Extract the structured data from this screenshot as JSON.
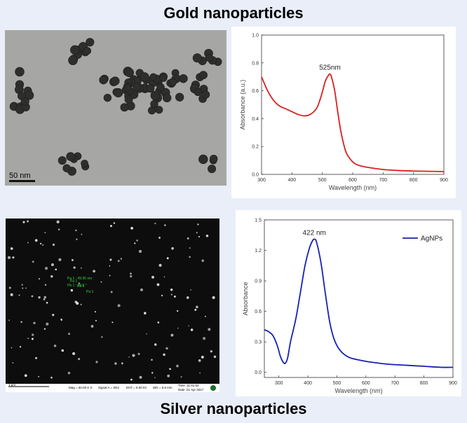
{
  "titles": {
    "gold": "Gold nanoparticles",
    "silver": "Silver nanoparticles"
  },
  "tem": {
    "scale_bar": "50 nm"
  },
  "sem": {
    "scale_bar": "1 μm",
    "info": {
      "mag": "Mag = 50.00 K X",
      "signal": "Signal A = SE2",
      "eht": "EHT = 5.00 kV",
      "wd": "WD = 5.8 mm",
      "time": "Time :11:01:53",
      "date": "Date :21 Apr 2017"
    },
    "measure_labels": [
      "Pa 1 : 49.95 nm",
      "Pb 1 : 19.6 °",
      "Pa 1",
      "Pb 1",
      "Pa 1"
    ]
  },
  "chart_data": [
    {
      "type": "line",
      "title": "",
      "xlabel": "Wavelength (nm)",
      "ylabel": "Absorbance (a.u.)",
      "xlim": [
        300,
        900
      ],
      "ylim": [
        0.0,
        1.0
      ],
      "xticks": [
        300,
        400,
        500,
        600,
        700,
        800,
        900
      ],
      "yticks": [
        0.0,
        0.2,
        0.4,
        0.6,
        0.8,
        1.0
      ],
      "tick_format": 1,
      "color": "#d9201f",
      "series": [
        {
          "x": [
            300,
            320,
            340,
            360,
            380,
            400,
            420,
            440,
            460,
            480,
            490,
            500,
            510,
            520,
            525,
            530,
            540,
            550,
            560,
            570,
            580,
            600,
            620,
            650,
            700,
            750,
            800,
            850,
            900
          ],
          "y": [
            0.7,
            0.6,
            0.53,
            0.49,
            0.47,
            0.45,
            0.43,
            0.42,
            0.43,
            0.47,
            0.52,
            0.59,
            0.67,
            0.71,
            0.72,
            0.7,
            0.61,
            0.46,
            0.32,
            0.22,
            0.15,
            0.09,
            0.065,
            0.05,
            0.035,
            0.028,
            0.024,
            0.022,
            0.02
          ]
        }
      ],
      "annotations": [
        {
          "x": 525,
          "y": 0.72,
          "text": "525nm"
        }
      ],
      "legend": null
    },
    {
      "type": "line",
      "title": "",
      "xlabel": "Wavelength (nm)",
      "ylabel": "Absorbance",
      "xlim": [
        250,
        900
      ],
      "ylim": [
        -0.05,
        1.5
      ],
      "xticks": [
        300,
        400,
        500,
        600,
        700,
        800,
        900
      ],
      "yticks": [
        0.0,
        0.3,
        0.6,
        0.9,
        1.2,
        1.5
      ],
      "tick_format": 1,
      "color": "#1621b4",
      "series": [
        {
          "name": "AgNPs",
          "x": [
            250,
            265,
            280,
            295,
            305,
            315,
            322,
            330,
            340,
            350,
            360,
            375,
            390,
            405,
            415,
            422,
            430,
            445,
            460,
            475,
            490,
            510,
            540,
            580,
            620,
            680,
            740,
            800,
            860,
            900
          ],
          "y": [
            0.42,
            0.4,
            0.36,
            0.26,
            0.16,
            0.1,
            0.09,
            0.14,
            0.3,
            0.42,
            0.55,
            0.8,
            1.05,
            1.22,
            1.29,
            1.31,
            1.28,
            1.08,
            0.78,
            0.5,
            0.33,
            0.22,
            0.15,
            0.12,
            0.1,
            0.08,
            0.07,
            0.06,
            0.05,
            0.05
          ]
        }
      ],
      "annotations": [
        {
          "x": 422,
          "y": 1.31,
          "text": "422 nm"
        }
      ],
      "legend": {
        "text": "AgNPs",
        "position": "top-right"
      }
    }
  ]
}
